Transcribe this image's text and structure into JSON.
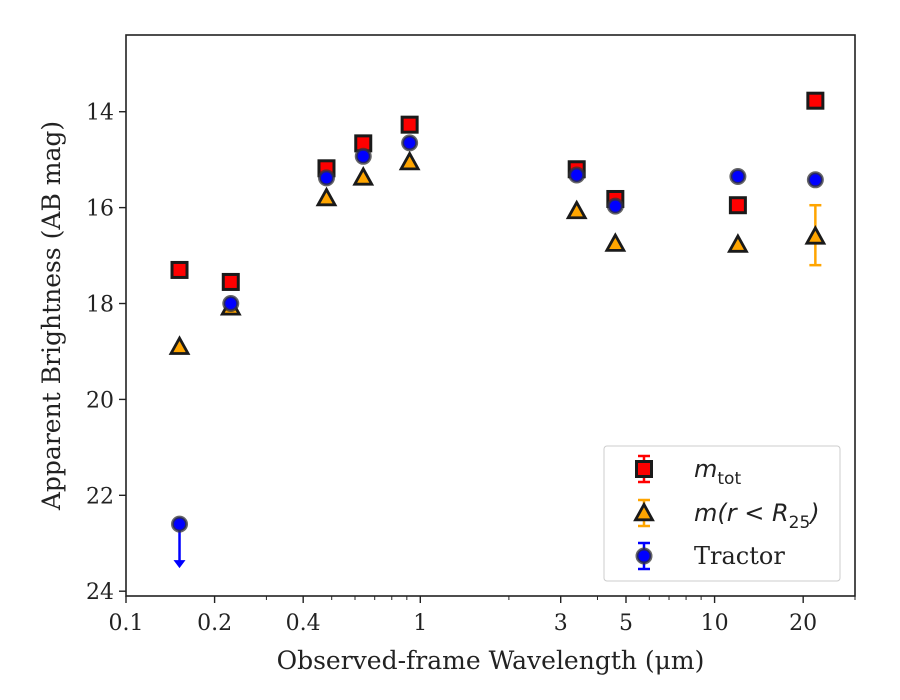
{
  "chart_data": {
    "type": "scatter",
    "xlabel": "Observed-frame Wavelength (μm)",
    "ylabel": "Apparent Brightness (AB mag)",
    "x_scale": "log",
    "xlim": [
      0.1,
      30
    ],
    "ylim": [
      24.1,
      12.4
    ],
    "y_inverted": true,
    "x_ticks": [
      {
        "value": 0.1,
        "label": "0.1"
      },
      {
        "value": 0.2,
        "label": "0.2"
      },
      {
        "value": 0.4,
        "label": "0.4"
      },
      {
        "value": 1,
        "label": "1"
      },
      {
        "value": 3,
        "label": "3"
      },
      {
        "value": 5,
        "label": "5"
      },
      {
        "value": 10,
        "label": "10"
      },
      {
        "value": 20,
        "label": "20"
      }
    ],
    "y_ticks": [
      {
        "value": 14,
        "label": "14"
      },
      {
        "value": 16,
        "label": "16"
      },
      {
        "value": 18,
        "label": "18"
      },
      {
        "value": 20,
        "label": "20"
      },
      {
        "value": 22,
        "label": "22"
      },
      {
        "value": 24,
        "label": "24"
      }
    ],
    "grid": false,
    "legend_position": "bottom-right",
    "series": [
      {
        "name": "m_tot",
        "legend_main": "m",
        "legend_sub": "tot",
        "marker": "square",
        "color": "#ff0000",
        "edge_color": "#1a1a1a",
        "err_color": "#ff0000",
        "points": [
          {
            "x": 0.152,
            "y": 17.3
          },
          {
            "x": 0.227,
            "y": 17.55
          },
          {
            "x": 0.48,
            "y": 15.18
          },
          {
            "x": 0.64,
            "y": 14.66
          },
          {
            "x": 0.92,
            "y": 14.27
          },
          {
            "x": 3.4,
            "y": 15.2
          },
          {
            "x": 4.6,
            "y": 15.82
          },
          {
            "x": 12.0,
            "y": 15.95
          },
          {
            "x": 22.0,
            "y": 13.77
          }
        ]
      },
      {
        "name": "m(r < R25)",
        "legend_main": "m(r < R",
        "legend_sub": "25",
        "legend_end": ")",
        "marker": "triangle",
        "color": "#ffa500",
        "edge_color": "#1a1a1a",
        "err_color": "#ffa500",
        "points": [
          {
            "x": 0.152,
            "y": 18.9
          },
          {
            "x": 0.227,
            "y": 18.08
          },
          {
            "x": 0.48,
            "y": 15.8
          },
          {
            "x": 0.64,
            "y": 15.37
          },
          {
            "x": 0.92,
            "y": 15.05
          },
          {
            "x": 3.4,
            "y": 16.07
          },
          {
            "x": 4.6,
            "y": 16.75
          },
          {
            "x": 12.0,
            "y": 16.77
          },
          {
            "x": 22.0,
            "y": 16.6,
            "err_low": 0.65,
            "err_high": 0.6
          }
        ]
      },
      {
        "name": "Tractor",
        "legend_main": "Tractor",
        "marker": "circle",
        "color": "#0000ff",
        "edge_color": "#333333",
        "err_color": "#0000ff",
        "points": [
          {
            "x": 0.152,
            "y": 22.6,
            "upper_limit": true
          },
          {
            "x": 0.227,
            "y": 18.0
          },
          {
            "x": 0.48,
            "y": 15.38
          },
          {
            "x": 0.64,
            "y": 14.93
          },
          {
            "x": 0.92,
            "y": 14.65
          },
          {
            "x": 3.4,
            "y": 15.32
          },
          {
            "x": 4.6,
            "y": 15.97
          },
          {
            "x": 12.0,
            "y": 15.35
          },
          {
            "x": 22.0,
            "y": 15.42
          }
        ]
      }
    ]
  }
}
